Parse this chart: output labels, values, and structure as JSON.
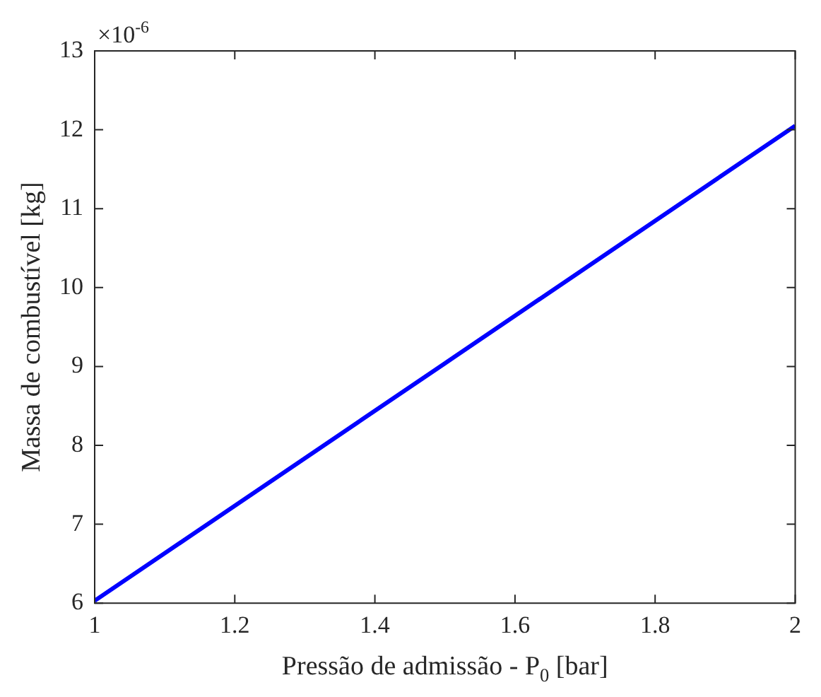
{
  "chart_data": {
    "type": "line",
    "xlabel": "Pressão de admissão - P$_{0}$ [bar]",
    "ylabel": "Massa de combustível [kg]",
    "annotations": [
      "×10$^{-6}$"
    ],
    "x": [
      1,
      1.5,
      2
    ],
    "series": [
      {
        "color": "#0000ff",
        "values": [
          6.03,
          9.04,
          12.05
        ]
      }
    ],
    "xlim": [
      1,
      2
    ],
    "xticks": [
      1,
      1.2,
      1.4,
      1.6,
      1.8,
      2
    ],
    "ylim": [
      6,
      13
    ],
    "yticks": [
      6,
      7,
      8,
      9,
      10,
      11,
      12,
      13
    ],
    "grid": false,
    "legend": false,
    "marker": "none",
    "line_style": "solid"
  }
}
